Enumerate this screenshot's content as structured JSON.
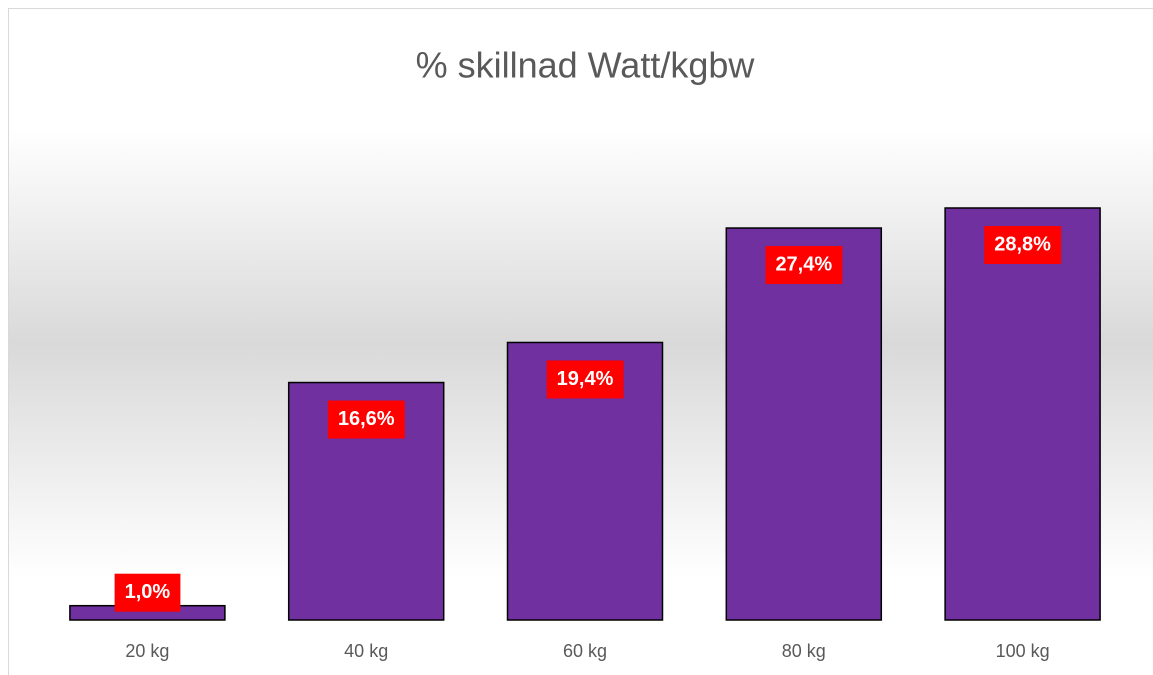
{
  "chart_data": {
    "type": "bar",
    "title": "% skillnad Watt/kgbw",
    "categories": [
      "20 kg",
      "40 kg",
      "60 kg",
      "80 kg",
      "100 kg"
    ],
    "values": [
      1.0,
      16.6,
      19.4,
      27.4,
      28.8
    ],
    "value_labels": [
      "1,0%",
      "16,6%",
      "19,4%",
      "27,4%",
      "28,8%"
    ],
    "color": "#7030a0",
    "label_color": "#ff0000"
  }
}
